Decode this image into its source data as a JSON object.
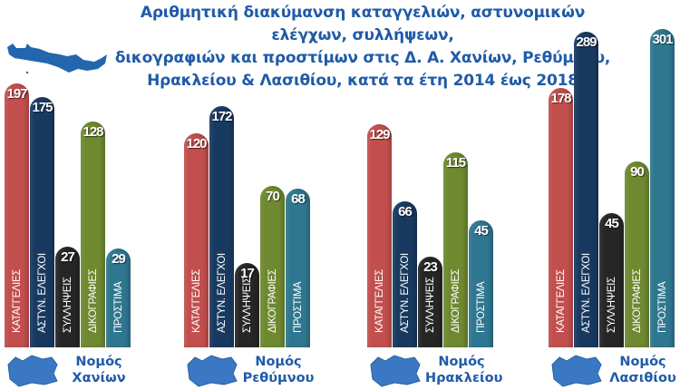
{
  "title": {
    "line1": "Αριθμητική διακύμανση καταγγελιών, αστυνομικών ελέγχων, συλλήψεων,",
    "line2": "δικογραφιών και προστίμων στις Δ. Α. Χανίων, Ρεθύμνου,",
    "line3": "Ηρακλείου & Λασιθίου, κατά τα έτη 2014 έως 2018"
  },
  "categories": [
    "ΚΑΤΑΓΓΕΛΙΕΣ",
    "ΑΣΤΥΝ. ΕΛΕΓΧΟΙ",
    "ΣΥΛΛΗΨΕΙΣ",
    "ΔΙΚΟΓΡΑΦΙΕΣ",
    "ΠΡΟΣΤΙΜΑ"
  ],
  "colors": [
    "#c24f4d",
    "#183a60",
    "#262626",
    "#6e8930",
    "#2f7790"
  ],
  "groups": [
    {
      "name_line1": "Νομός",
      "name_line2": "Χανίων",
      "values": [
        "197",
        "175",
        "27",
        "128",
        "29"
      ]
    },
    {
      "name_line1": "Νομός",
      "name_line2": "Ρεθύμνου",
      "values": [
        "120",
        "172",
        "17",
        "70",
        "68"
      ]
    },
    {
      "name_line1": "Νομός",
      "name_line2": "Ηρακλείου",
      "values": [
        "129",
        "66",
        "23",
        "115",
        "45"
      ]
    },
    {
      "name_line1": "Νομός",
      "name_line2": "Λασιθίου",
      "values": [
        "178",
        "289",
        "45",
        "90",
        "301"
      ]
    }
  ],
  "chart_data": {
    "type": "bar",
    "title": "Αριθμητική διακύμανση καταγγελιών, αστυνομικών ελέγχων, συλλήψεων, δικογραφιών και προστίμων στις Δ. Α. Χανίων, Ρεθύμνου, Ηρακλείου & Λασιθίου, κατά τα έτη 2014 έως 2018",
    "categories": [
      "Νομός Χανίων",
      "Νομός Ρεθύμνου",
      "Νομός Ηρακλείου",
      "Νομός Λασιθίου"
    ],
    "series": [
      {
        "name": "ΚΑΤΑΓΓΕΛΙΕΣ",
        "color": "#c24f4d",
        "values": [
          197,
          120,
          129,
          178
        ]
      },
      {
        "name": "ΑΣΤΥΝ. ΕΛΕΓΧΟΙ",
        "color": "#183a60",
        "values": [
          175,
          172,
          66,
          289
        ]
      },
      {
        "name": "ΣΥΛΛΗΨΕΙΣ",
        "color": "#262626",
        "values": [
          27,
          17,
          23,
          45
        ]
      },
      {
        "name": "ΔΙΚΟΓΡΑΦΙΕΣ",
        "color": "#6e8930",
        "values": [
          128,
          70,
          115,
          90
        ]
      },
      {
        "name": "ΠΡΟΣΤΙΜΑ",
        "color": "#2f7790",
        "values": [
          29,
          68,
          45,
          301
        ]
      }
    ],
    "xlabel": "",
    "ylabel": "",
    "grid": false,
    "legend": "none (labels written vertically inside bars)"
  }
}
